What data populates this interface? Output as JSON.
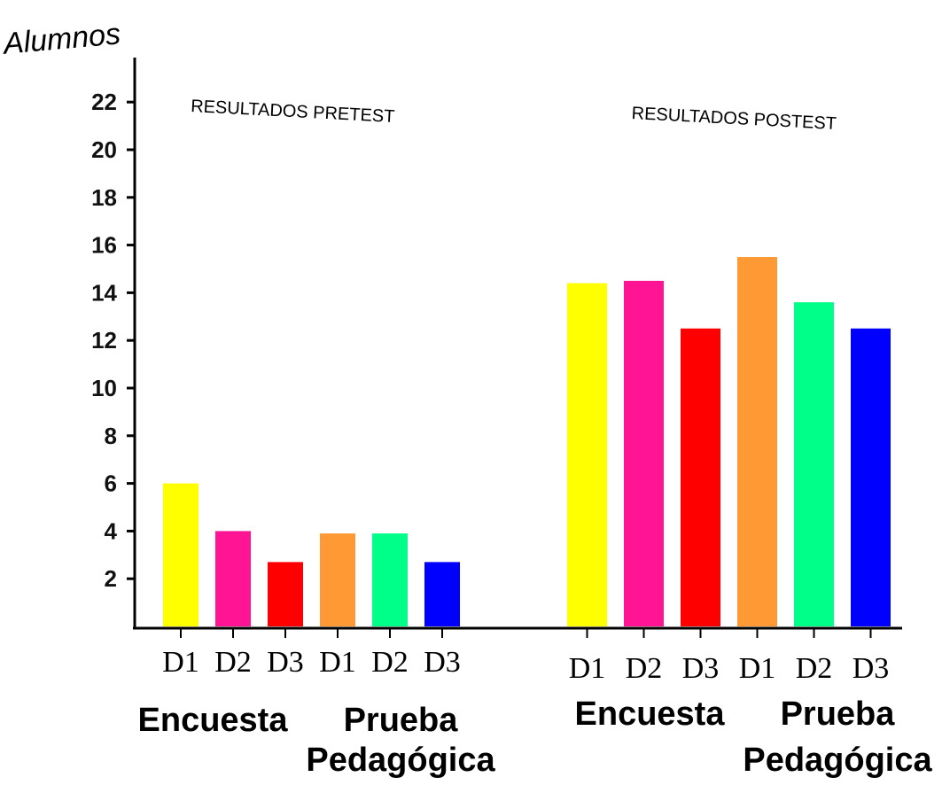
{
  "chart_data": {
    "type": "bar",
    "ylabel": "Alumnos",
    "ylim": [
      0,
      24
    ],
    "yticks": [
      2,
      4,
      6,
      8,
      10,
      12,
      14,
      16,
      18,
      20,
      22
    ],
    "grid": false,
    "panels": [
      {
        "title": "RESULTADOS PRETEST",
        "categories": [
          "D1",
          "D2",
          "D3",
          "D1",
          "D2",
          "D3"
        ],
        "values": [
          6,
          4,
          2.7,
          3.9,
          3.9,
          2.7
        ],
        "colors": [
          "#ffff00",
          "#ff1493",
          "#ff0000",
          "#ff9933",
          "#00ff88",
          "#0000ff"
        ],
        "groups": [
          {
            "label": "Encuesta",
            "lines": [
              "Encuesta"
            ]
          },
          {
            "label": "Prueba Pedagógica",
            "lines": [
              "Prueba",
              "Pedagógica"
            ]
          }
        ]
      },
      {
        "title": "RESULTADOS POSTEST",
        "categories": [
          "D1",
          "D2",
          "D3",
          "D1",
          "D2",
          "D3"
        ],
        "values": [
          14.4,
          14.5,
          12.5,
          15.5,
          13.6,
          12.5
        ],
        "colors": [
          "#ffff00",
          "#ff1493",
          "#ff0000",
          "#ff9933",
          "#00ff88",
          "#0000ff"
        ],
        "groups": [
          {
            "label": "Encuesta",
            "lines": [
              "Encuesta"
            ]
          },
          {
            "label": "Prueba Pedagógica",
            "lines": [
              "Prueba",
              "Pedagógica"
            ]
          }
        ]
      }
    ]
  }
}
